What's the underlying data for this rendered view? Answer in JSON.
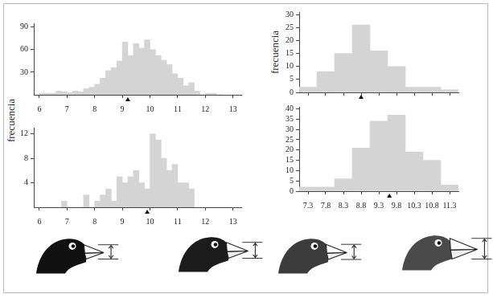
{
  "chart_data": [
    {
      "type": "histogram",
      "y_label": "frecuencia",
      "bins": [
        6,
        6.2,
        6.4,
        6.6,
        6.8,
        7,
        7.2,
        7.4,
        7.6,
        7.8,
        8,
        8.2,
        8.4,
        8.6,
        8.8,
        9,
        9.2,
        9.4,
        9.6,
        9.8,
        10,
        10.2,
        10.4,
        10.6,
        10.8,
        11,
        11.2,
        11.4,
        11.6,
        11.8,
        12,
        12.2,
        12.4,
        12.6
      ],
      "values": [
        2,
        2,
        2,
        5,
        4,
        3,
        5,
        4,
        8,
        10,
        14,
        22,
        32,
        36,
        45,
        70,
        52,
        68,
        62,
        73,
        60,
        52,
        46,
        40,
        28,
        22,
        12,
        16,
        5,
        0,
        2,
        2,
        0
      ],
      "mean": 9.2,
      "color": "#d4d4d4",
      "xlim": [
        5.8,
        13.3
      ],
      "xticks": [
        6,
        7,
        8,
        9,
        10,
        11,
        12,
        13
      ],
      "ylim": [
        0,
        95
      ],
      "yticks": [
        30,
        60,
        90
      ],
      "grid": false
    },
    {
      "type": "histogram",
      "bins": [
        6.8,
        7,
        7.2,
        7.4,
        7.6,
        7.8,
        8,
        8.2,
        8.4,
        8.6,
        8.8,
        9,
        9.2,
        9.4,
        9.6,
        9.8,
        10,
        10.2,
        10.4,
        10.6,
        10.8,
        11,
        11.2,
        11.4,
        11.6
      ],
      "values": [
        1,
        0,
        0,
        0,
        2,
        0,
        1,
        2,
        3,
        1,
        5,
        4,
        5,
        6,
        4,
        3,
        12,
        11,
        8,
        6,
        7,
        4,
        4,
        3
      ],
      "mean": 9.9,
      "color": "#d4d4d4",
      "xlim": [
        5.8,
        13.3
      ],
      "xticks": [
        6,
        7,
        8,
        9,
        10,
        11,
        12,
        13
      ],
      "ylim": [
        0,
        13
      ],
      "yticks": [
        4,
        8,
        12
      ],
      "grid": false
    },
    {
      "type": "histogram",
      "y_label": "frecuencia",
      "bins": [
        7.05,
        7.55,
        8.05,
        8.55,
        9.05,
        9.55,
        10.05,
        10.55,
        11.05,
        11.55
      ],
      "values": [
        2,
        8,
        15,
        26,
        16,
        10,
        2,
        2,
        1
      ],
      "mean": 8.8,
      "color": "#d4d4d4",
      "xlim": [
        7.05,
        11.55
      ],
      "xticks": [
        7.3,
        7.8,
        8.3,
        8.8,
        9.3,
        9.8,
        10.3,
        10.8,
        11.3
      ],
      "ylim": [
        0,
        31
      ],
      "yticks": [
        0,
        5,
        10,
        15,
        20,
        25,
        30
      ],
      "grid": false,
      "tick_labels": "y"
    },
    {
      "type": "histogram",
      "bins": [
        7.05,
        7.55,
        8.05,
        8.55,
        9.05,
        9.55,
        10.05,
        10.55,
        11.05,
        11.55
      ],
      "values": [
        2,
        2,
        6,
        21,
        34,
        37,
        19,
        15,
        3
      ],
      "mean": 9.6,
      "color": "#d4d4d4",
      "xlim": [
        7.05,
        11.55
      ],
      "xticks": [
        7.3,
        7.8,
        8.3,
        8.8,
        9.3,
        9.8,
        10.3,
        10.8,
        11.3
      ],
      "ylim": [
        0,
        41
      ],
      "yticks": [
        0,
        5,
        10,
        15,
        20,
        25,
        30,
        35,
        40
      ],
      "grid": false
    }
  ]
}
